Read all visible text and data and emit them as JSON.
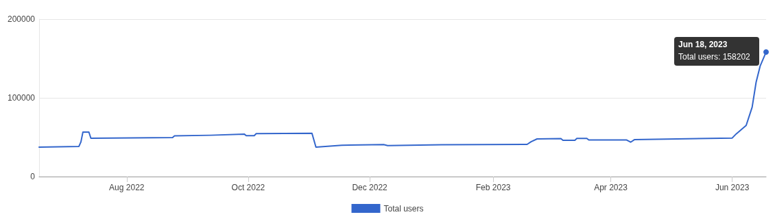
{
  "chart_data": {
    "type": "line",
    "legend": "bottom",
    "grid": "y",
    "marker": "none",
    "line_style": "solid",
    "x": [
      "2022-06-18",
      "2022-07-08",
      "2022-07-09",
      "2022-07-10",
      "2022-07-13",
      "2022-07-14",
      "2022-08-24",
      "2022-08-25",
      "2022-09-12",
      "2022-09-29",
      "2022-09-30",
      "2022-10-04",
      "2022-10-05",
      "2022-11-02",
      "2022-11-04",
      "2022-11-17",
      "2022-12-08",
      "2022-12-10",
      "2023-01-06",
      "2023-02-18",
      "2023-02-20",
      "2023-02-23",
      "2023-03-07",
      "2023-03-08",
      "2023-03-14",
      "2023-03-15",
      "2023-03-20",
      "2023-03-21",
      "2023-04-09",
      "2023-04-11",
      "2023-04-13",
      "2023-06-01",
      "2023-06-03",
      "2023-06-08",
      "2023-06-11",
      "2023-06-13",
      "2023-06-15",
      "2023-06-18"
    ],
    "series": [
      {
        "name": "Total users",
        "color": "#3366cc",
        "values": [
          37400,
          38300,
          44000,
          56500,
          56500,
          48700,
          49600,
          51800,
          52500,
          54000,
          52000,
          52000,
          54500,
          55000,
          37400,
          39800,
          40700,
          39400,
          40500,
          40900,
          44300,
          47800,
          48200,
          46100,
          46100,
          48500,
          48500,
          46500,
          46500,
          43700,
          47000,
          49000,
          54200,
          65000,
          88100,
          120000,
          140300,
          158202
        ]
      }
    ],
    "xlim": [
      "2022-06-18",
      "2023-06-18"
    ],
    "xticks": [
      {
        "value": "2022-08-01",
        "label": "Aug 2022"
      },
      {
        "value": "2022-10-01",
        "label": "Oct 2022"
      },
      {
        "value": "2022-12-01",
        "label": "Dec 2022"
      },
      {
        "value": "2023-02-01",
        "label": "Feb 2023"
      },
      {
        "value": "2023-04-01",
        "label": "Apr 2023"
      },
      {
        "value": "2023-06-01",
        "label": "Jun 2023"
      }
    ],
    "ylim": [
      0,
      200000
    ],
    "yticks": [
      0,
      100000,
      200000
    ],
    "annotations": [
      {
        "text": "Jun 18, 2023\nTotal users: 158202",
        "x": "2023-06-18",
        "y": 158202
      }
    ]
  }
}
